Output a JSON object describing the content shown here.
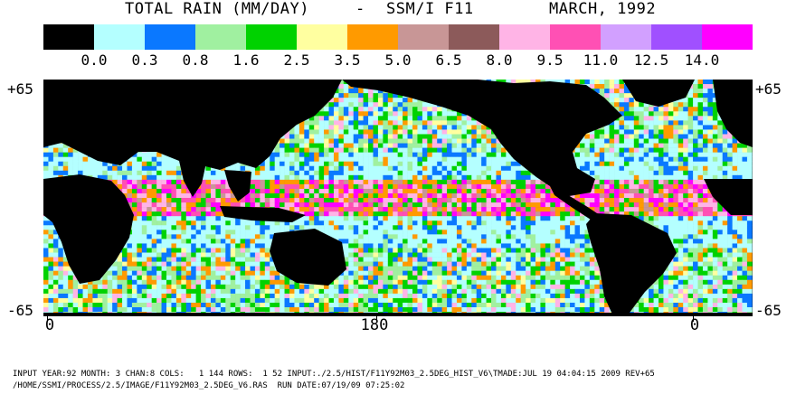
{
  "title": {
    "product": "TOTAL RAIN (MM/DAY)",
    "separator": "-",
    "sensor": "SSM/I F11",
    "period": "MARCH, 1992"
  },
  "legend": {
    "colors": [
      "#000000",
      "#b4ffff",
      "#0a78ff",
      "#a0f0a0",
      "#00d200",
      "#ffffa0",
      "#ff9a00",
      "#c89696",
      "#8c5a5a",
      "#ffb4e6",
      "#ff50b4",
      "#d2a0ff",
      "#a050ff",
      "#ff00ff"
    ],
    "labels": [
      "0.0",
      "0.3",
      "0.8",
      "1.6",
      "2.5",
      "3.5",
      "5.0",
      "6.5",
      "8.0",
      "9.5",
      "11.0",
      "12.5",
      "14.0"
    ]
  },
  "axes": {
    "lat_top_left": "+65",
    "lat_top_right": "+65",
    "lat_bottom_left": "-65",
    "lat_bottom_right": "-65",
    "lon_labels": [
      "0",
      "180",
      "0"
    ]
  },
  "colors": {
    "land": "#000000",
    "ocean_dry": "#b4ffff"
  },
  "footer": {
    "line1": "INPUT YEAR:92 MONTH: 3 CHAN:8 COLS:   1 144 ROWS:  1 52 INPUT:./2.5/HIST/F11Y92M03_2.5DEG_HIST_V6\\TMADE:JUL 19 04:04:15 2009 REV+65",
    "line2": "/HOME/SSMI/PROCESS/2.5/IMAGE/F11Y92M03_2.5DEG_V6.RAS  RUN DATE:07/19/09 07:25:02"
  }
}
